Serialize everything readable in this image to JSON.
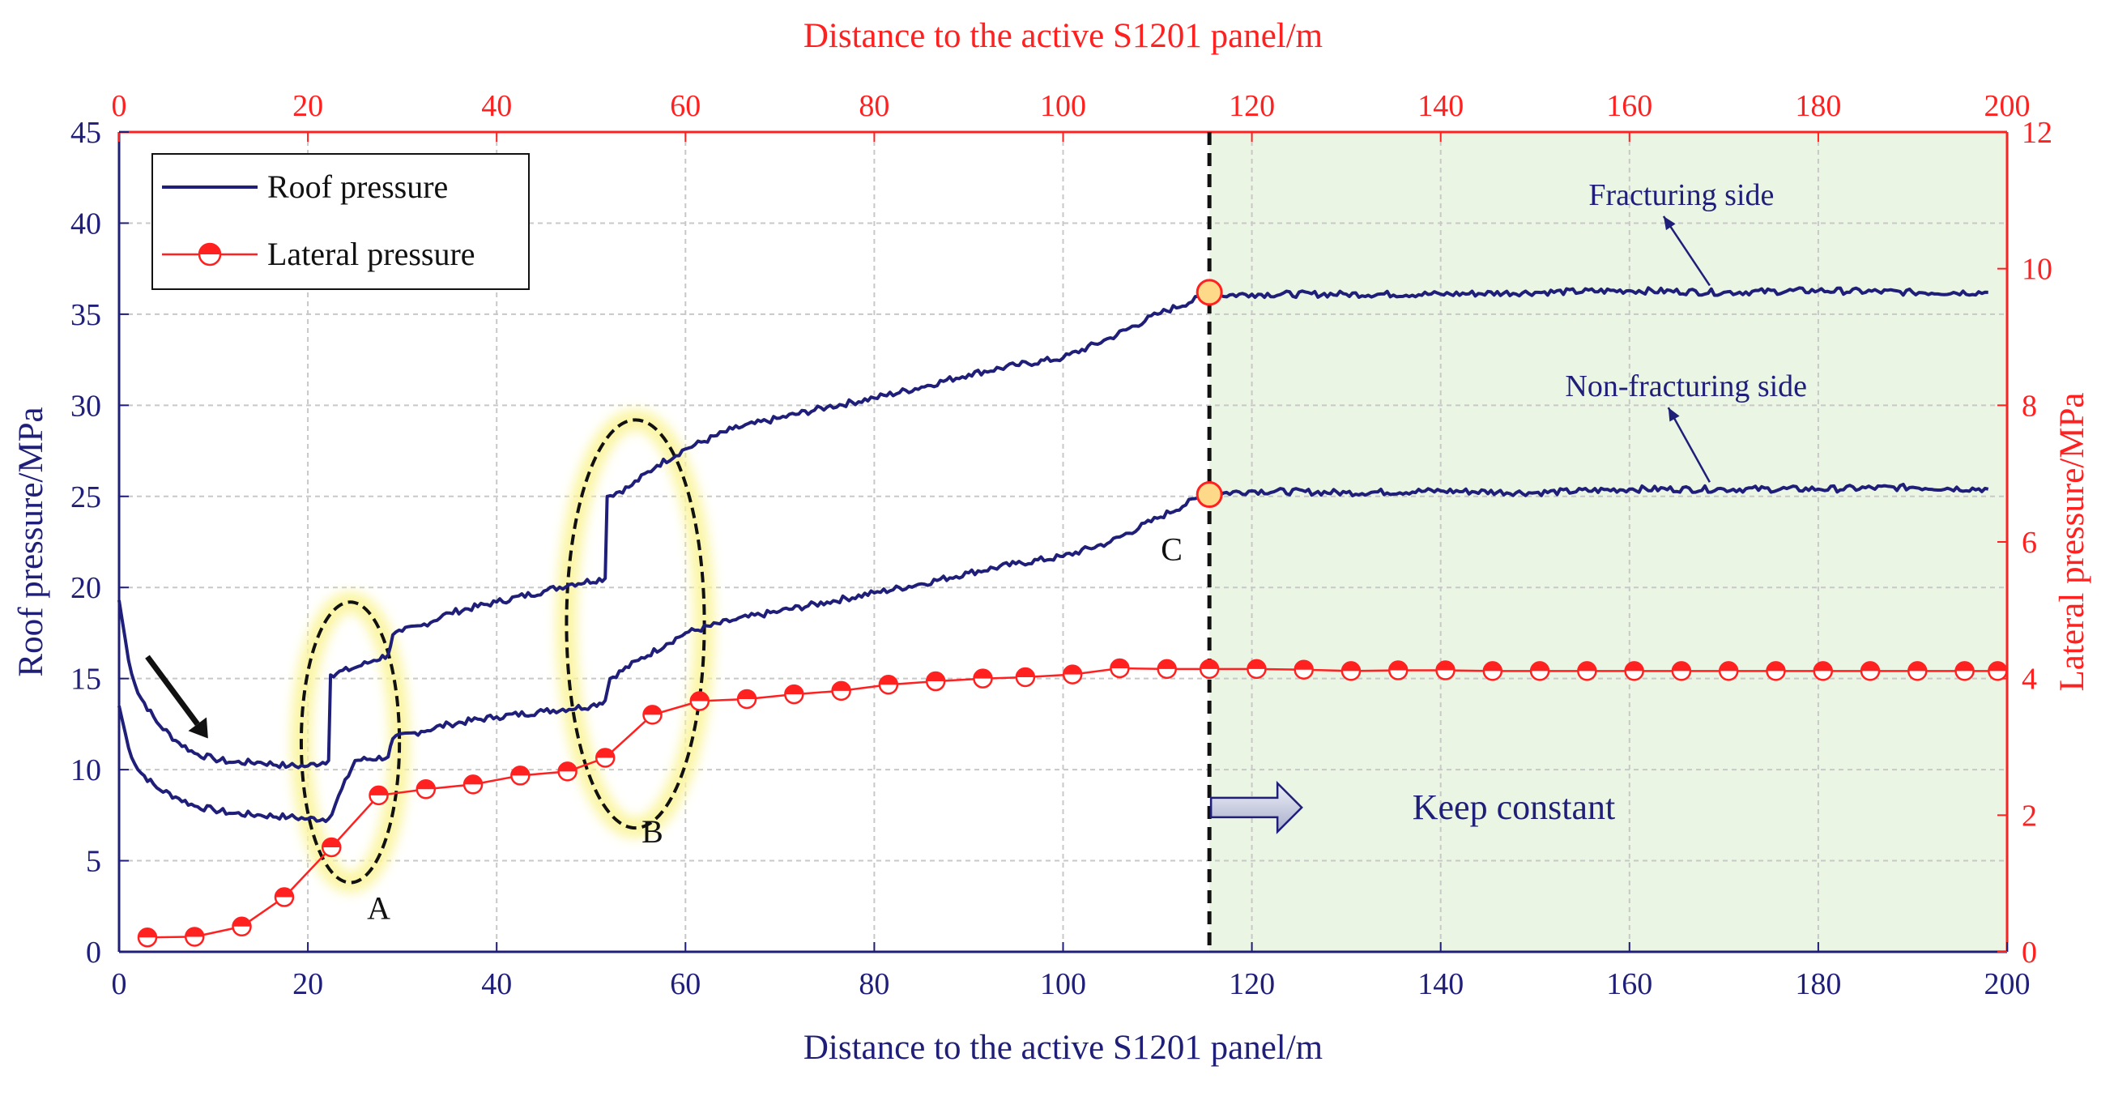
{
  "chart_data": {
    "type": "line",
    "title": "",
    "xlabel_bottom": "Distance to the active S1201 panel/m",
    "xlabel_top": "Distance to the active S1201 panel/m",
    "ylabel_left": "Roof pressure/MPa",
    "ylabel_right": "Lateral pressure/MPa",
    "xlim": [
      0,
      200
    ],
    "ylim_left": [
      0,
      45
    ],
    "ylim_right": [
      0,
      12
    ],
    "x_ticks": [
      0,
      20,
      40,
      60,
      80,
      100,
      120,
      140,
      160,
      180,
      200
    ],
    "y_left_ticks": [
      0,
      5,
      10,
      15,
      20,
      25,
      30,
      35,
      40,
      45
    ],
    "y_right_ticks": [
      0,
      2,
      4,
      6,
      8,
      10,
      12
    ],
    "grid": true,
    "legend": {
      "position": "top-left",
      "entries": [
        "Roof pressure",
        "Lateral pressure"
      ]
    },
    "series": [
      {
        "name": "Roof pressure (Fracturing side)",
        "axis": "left",
        "color": "#1f1f7a",
        "x": [
          0,
          1,
          2,
          4,
          6,
          8,
          10,
          12,
          15,
          18,
          20,
          22.2,
          22.4,
          25,
          27,
          28.5,
          29,
          30,
          32,
          35,
          40,
          45,
          48,
          51.5,
          51.7,
          54,
          57,
          60,
          65,
          70,
          75,
          80,
          85,
          90,
          95,
          100,
          105,
          110,
          115,
          120,
          130,
          140,
          150,
          160,
          170,
          180,
          190,
          198
        ],
        "values": [
          19.3,
          16.0,
          14.2,
          12.6,
          11.6,
          10.9,
          10.6,
          10.4,
          10.4,
          10.2,
          10.2,
          10.5,
          15.2,
          15.6,
          16.0,
          16.3,
          17.4,
          17.6,
          17.9,
          18.6,
          19.2,
          19.8,
          20.2,
          20.5,
          25.0,
          25.5,
          26.7,
          27.6,
          28.7,
          29.3,
          29.9,
          30.4,
          31.0,
          31.7,
          32.2,
          32.6,
          33.7,
          35.0,
          36.0,
          36.1,
          36.1,
          36.1,
          36.2,
          36.3,
          36.2,
          36.3,
          36.2,
          36.2
        ]
      },
      {
        "name": "Roof pressure (Non-fracturing side)",
        "axis": "left",
        "color": "#1f1f7a",
        "x": [
          0,
          1,
          2,
          4,
          6,
          8,
          10,
          12,
          15,
          18,
          20,
          22.2,
          25,
          28.5,
          29,
          32,
          35,
          40,
          45,
          50,
          51.5,
          52,
          55,
          58,
          60,
          65,
          70,
          75,
          80,
          85,
          90,
          95,
          100,
          105,
          110,
          115,
          120,
          130,
          140,
          150,
          160,
          170,
          180,
          190,
          198
        ],
        "values": [
          13.5,
          11.2,
          10.0,
          9.0,
          8.5,
          8.0,
          7.8,
          7.6,
          7.5,
          7.4,
          7.3,
          7.3,
          10.5,
          10.7,
          11.7,
          12.1,
          12.5,
          12.9,
          13.2,
          13.5,
          13.8,
          15.0,
          16.0,
          16.9,
          17.5,
          18.2,
          18.7,
          19.2,
          19.7,
          20.2,
          20.8,
          21.3,
          21.7,
          22.5,
          23.8,
          25.1,
          25.3,
          25.2,
          25.3,
          25.2,
          25.4,
          25.4,
          25.4,
          25.5,
          25.4
        ]
      },
      {
        "name": "Lateral pressure",
        "axis": "right",
        "color": "#ff2020",
        "x": [
          3,
          8,
          13,
          17.5,
          22.5,
          27.5,
          32.5,
          37.5,
          42.5,
          47.5,
          51.5,
          56.5,
          61.5,
          66.5,
          71.5,
          76.5,
          81.5,
          86.5,
          91.5,
          96,
          101,
          106,
          111,
          115.5,
          120.5,
          125.5,
          130.5,
          135.5,
          140.5,
          145.5,
          150.5,
          155.5,
          160.5,
          165.5,
          170.5,
          175.5,
          180.5,
          185.5,
          190.5,
          195.5,
          199
        ],
        "values": [
          0.21,
          0.22,
          0.37,
          0.8,
          1.53,
          2.29,
          2.38,
          2.45,
          2.58,
          2.64,
          2.84,
          3.47,
          3.67,
          3.7,
          3.77,
          3.82,
          3.91,
          3.96,
          4.0,
          4.02,
          4.06,
          4.15,
          4.14,
          4.14,
          4.14,
          4.13,
          4.11,
          4.12,
          4.12,
          4.11,
          4.11,
          4.11,
          4.11,
          4.11,
          4.11,
          4.11,
          4.11,
          4.11,
          4.11,
          4.11,
          4.11
        ]
      }
    ],
    "highlight_points": [
      {
        "x": 115.5,
        "axis": "left",
        "value": 36.2
      },
      {
        "x": 115.5,
        "axis": "left",
        "value": 25.1
      }
    ],
    "shaded_region": {
      "x_start": 115.5,
      "x_end": 200,
      "color": "#ebf5e4"
    },
    "vertical_marker": {
      "x": 115.5,
      "style": "dashed"
    },
    "ellipses": [
      {
        "label": "A",
        "cx": 24.5,
        "cy": 11.5,
        "rx": 5.2,
        "ry": 7.7
      },
      {
        "label": "B",
        "cx": 54.7,
        "cy": 18.0,
        "rx": 7.3,
        "ry": 11.2
      }
    ],
    "annotations": [
      {
        "text": "A",
        "x": 27.5,
        "y": 1.8
      },
      {
        "text": "B",
        "x": 56.5,
        "y": 6.0
      },
      {
        "text": "C",
        "x": 111.5,
        "y": 21.5
      },
      {
        "text": "Fracturing side",
        "x": 165.5,
        "y": 41.0,
        "arrow_to": [
          168.5,
          36.4
        ]
      },
      {
        "text": "Non-fracturing side",
        "x": 166,
        "y": 30.5,
        "arrow_to": [
          168.5,
          25.6
        ]
      },
      {
        "text": "Keep constant",
        "x": 137,
        "y": 7.3
      }
    ],
    "colors": {
      "left_axis": "#1f1f7a",
      "right_axis": "#ff2020",
      "grid": "#c8c8c8",
      "highlight_fill": "#ffd98a",
      "ellipse_glow": "#fbf5a0"
    }
  }
}
